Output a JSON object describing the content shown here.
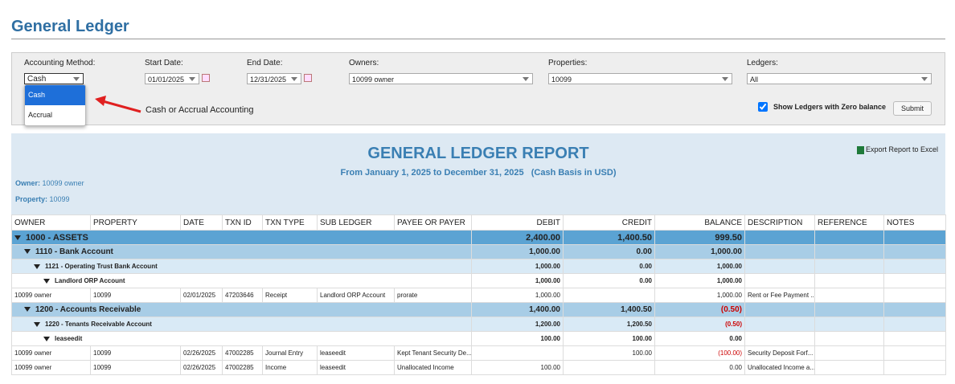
{
  "header": {
    "title": "General Ledger"
  },
  "filters": {
    "method": {
      "label": "Accounting Method:",
      "value": "Cash",
      "options": [
        "Cash",
        "Accrual"
      ]
    },
    "start": {
      "label": "Start Date:",
      "value": "01/01/2025"
    },
    "end": {
      "label": "End Date:",
      "value": "12/31/2025"
    },
    "owners": {
      "label": "Owners:",
      "value": "10099 owner"
    },
    "properties": {
      "label": "Properties:",
      "value": "10099"
    },
    "ledgers": {
      "label": "Ledgers:",
      "value": "All"
    },
    "annotation": "Cash or Accrual Accounting",
    "zero_balance": {
      "label": "Show Ledgers with Zero balance",
      "checked": true
    },
    "submit": "Submit"
  },
  "report": {
    "title": "GENERAL LEDGER REPORT",
    "subtitle": "From January 1, 2025 to December 31, 2025   (Cash Basis in USD)",
    "export": "Export Report to Excel",
    "owner": {
      "label": "Owner:",
      "value": "10099 owner"
    },
    "property": {
      "label": "Property:",
      "value": "10099"
    }
  },
  "table": {
    "columns": [
      "OWNER",
      "PROPERTY",
      "DATE",
      "TXN ID",
      "TXN TYPE",
      "SUB LEDGER",
      "PAYEE OR PAYER",
      "DEBIT",
      "CREDIT",
      "BALANCE",
      "DESCRIPTION",
      "REFERENCE",
      "NOTES"
    ],
    "accounts": [
      {
        "name": "1000 - ASSETS",
        "debit": "2,400.00",
        "credit": "1,400.50",
        "balance": "999.50",
        "accounts": [
          {
            "name": "1110 - Bank Account",
            "debit": "1,000.00",
            "credit": "0.00",
            "balance": "1,000.00",
            "accounts": [
              {
                "name": "1121 - Operating Trust Bank Account",
                "debit": "1,000.00",
                "credit": "0.00",
                "balance": "1,000.00",
                "accounts": [
                  {
                    "name": "Landlord ORP Account",
                    "debit": "1,000.00",
                    "credit": "0.00",
                    "balance": "1,000.00",
                    "transactions": [
                      [
                        "10099 owner",
                        "10099",
                        "02/01/2025",
                        "47203646",
                        "Receipt",
                        "Landlord ORP Account",
                        "prorate",
                        "1,000.00",
                        null,
                        "1,000.00",
                        "Rent or Fee Payment ...",
                        null,
                        null
                      ]
                    ]
                  }
                ]
              }
            ]
          },
          {
            "name": "1200 - Accounts Receivable",
            "debit": "1,400.00",
            "credit": "1,400.50",
            "balance": "(0.50)",
            "accounts": [
              {
                "name": "1220 - Tenants Receivable Account",
                "debit": "1,200.00",
                "credit": "1,200.50",
                "balance": "(0.50)",
                "accounts": [
                  {
                    "name": "leaseedit",
                    "debit": "100.00",
                    "credit": "100.00",
                    "balance": "0.00",
                    "transactions": [
                      [
                        "10099 owner",
                        "10099",
                        "02/26/2025",
                        "47002285",
                        "Journal Entry",
                        "leaseedit",
                        "Kept Tenant Security De...",
                        null,
                        "100.00",
                        "(100.00)",
                        "Security Deposit Forf...",
                        null,
                        null
                      ],
                      [
                        "10099 owner",
                        "10099",
                        "02/26/2025",
                        "47002285",
                        "Income",
                        "leaseedit",
                        "Unallocated Income",
                        "100.00",
                        null,
                        "0.00",
                        "Unallocated Income a...",
                        null,
                        null
                      ]
                    ]
                  }
                ]
              }
            ]
          }
        ]
      }
    ]
  }
}
